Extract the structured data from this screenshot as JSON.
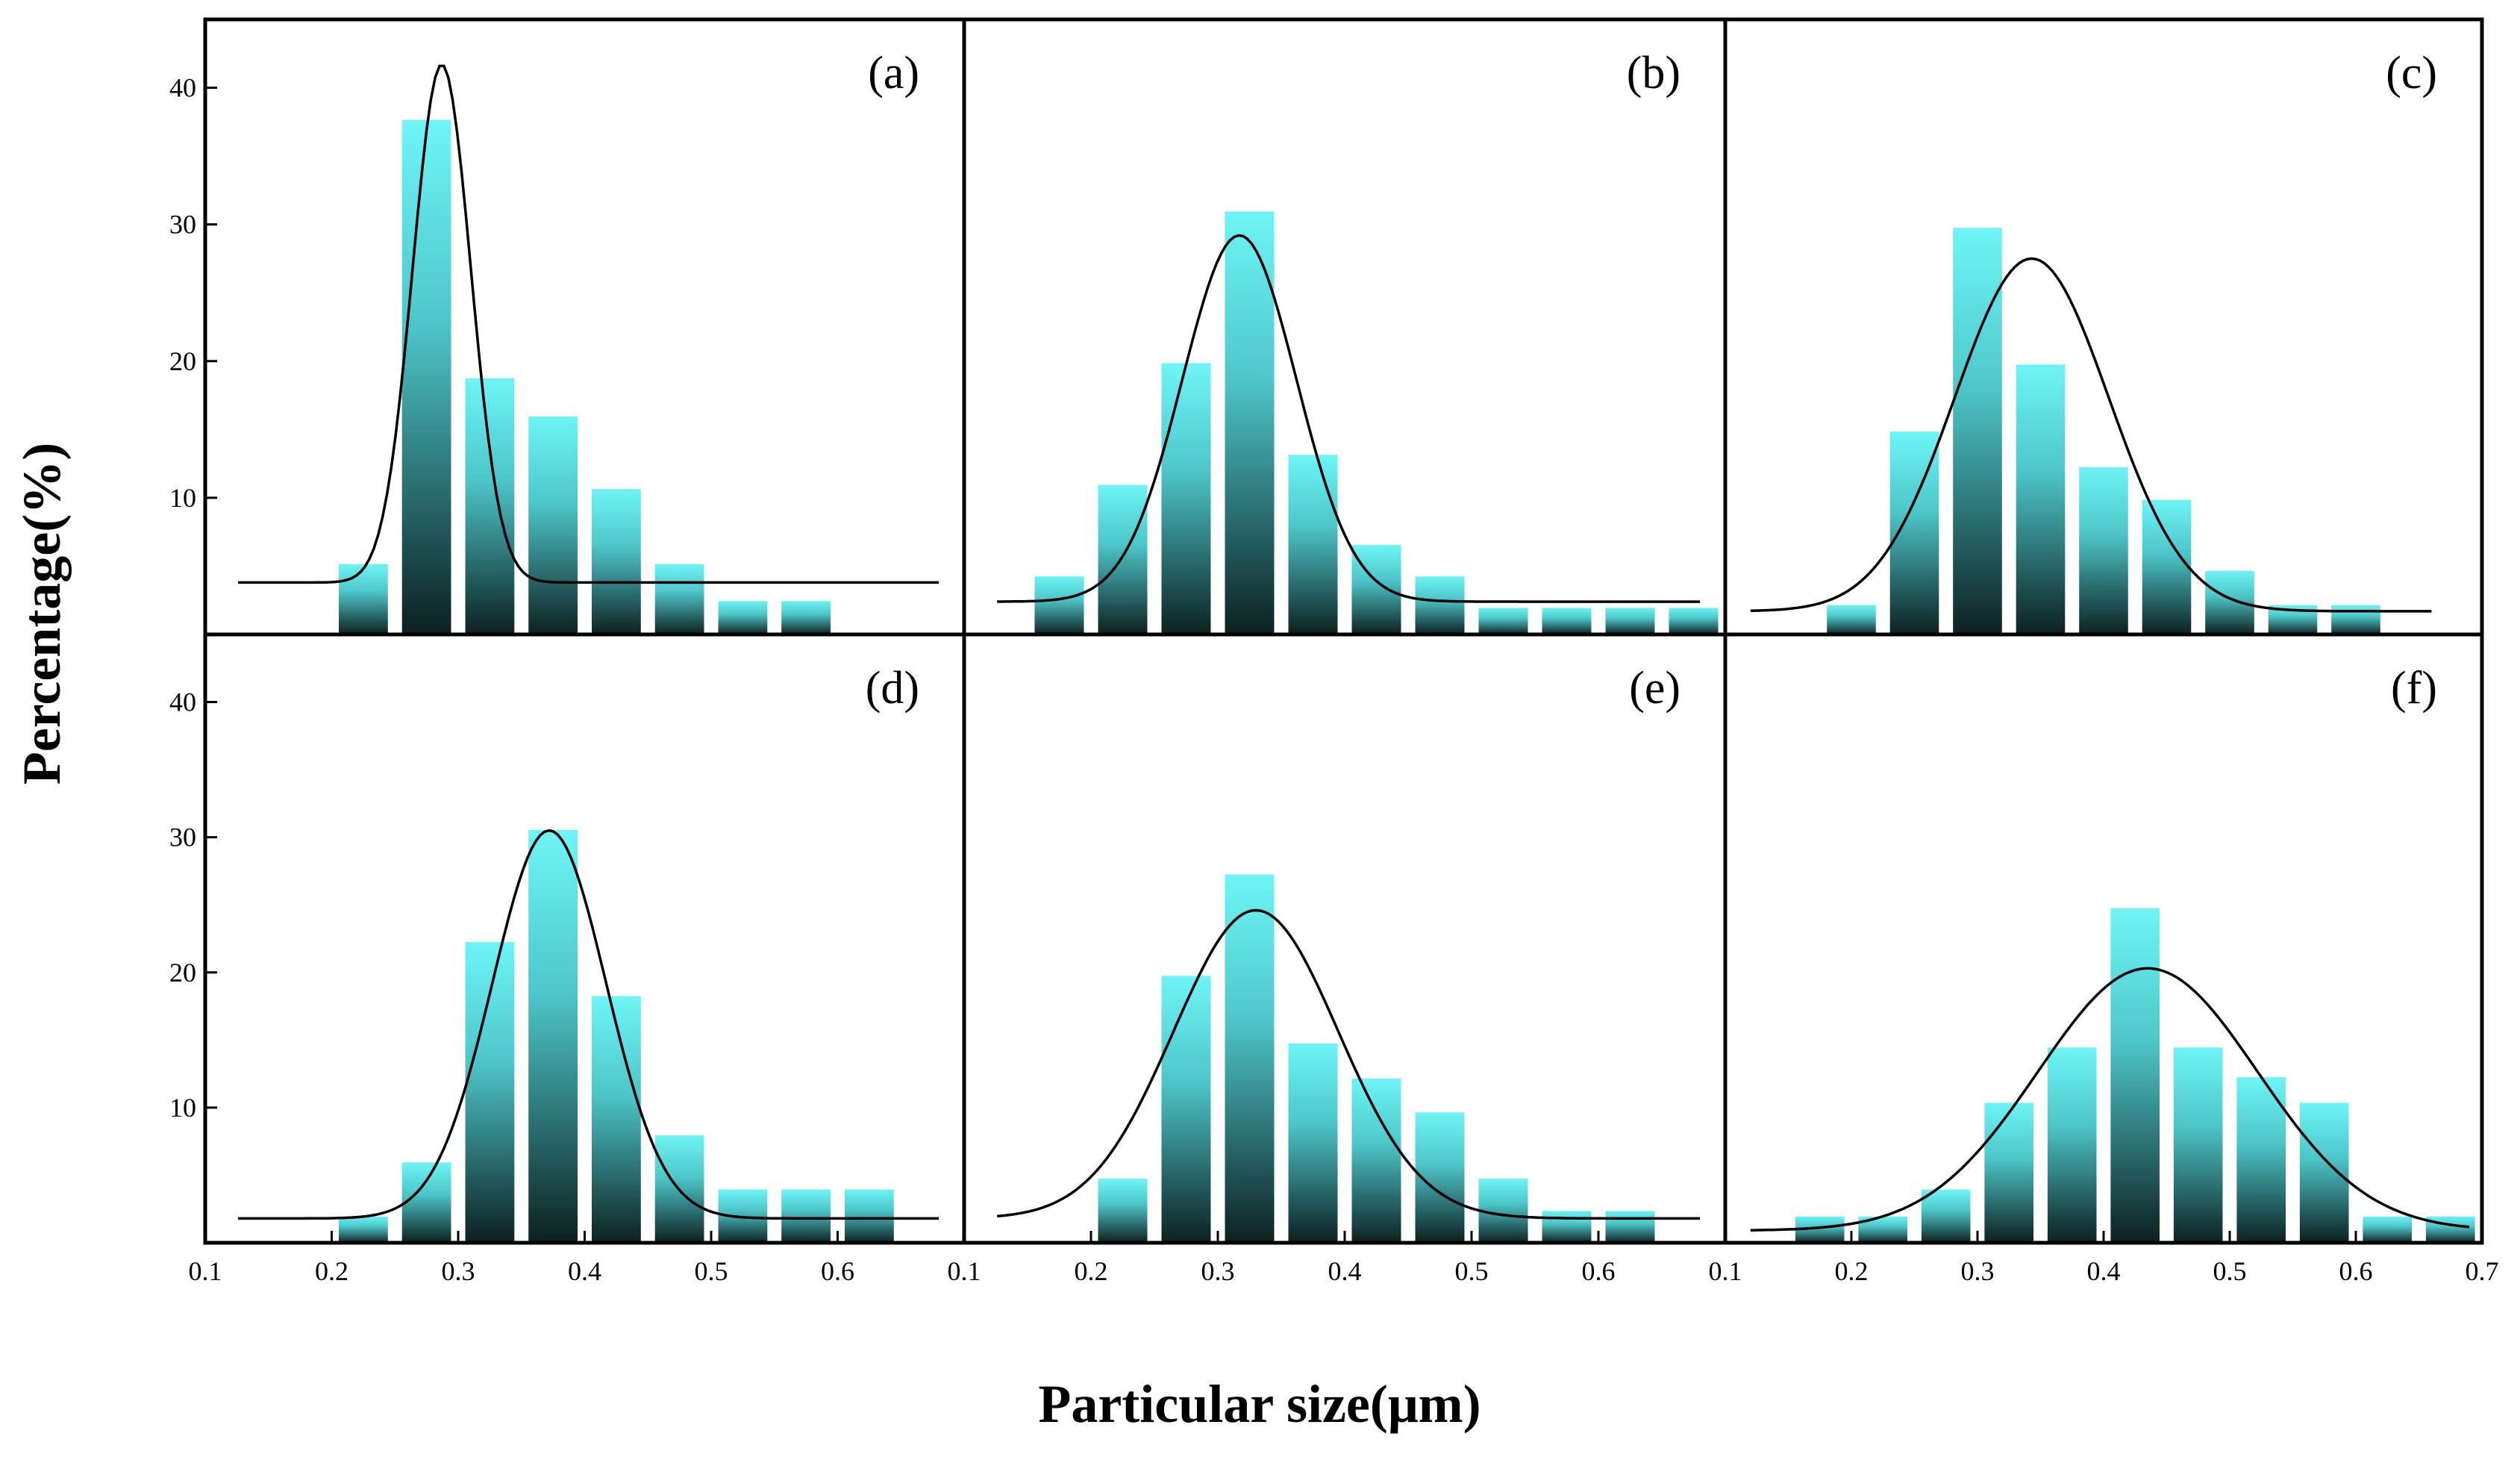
{
  "chart_data": {
    "type": "bar",
    "ylabel": "Percentage(%)",
    "xlabel": "Particular size(μm)",
    "bar_color_top": "#6ff5f7",
    "bar_color_bottom": "#0c2020",
    "fit_color": "#000000",
    "xlim": [
      0.1,
      0.7
    ],
    "ylim": [
      0,
      45
    ],
    "y_ticks": [
      {
        "value": 10,
        "label": "10"
      },
      {
        "value": 20,
        "label": "20"
      },
      {
        "value": 30,
        "label": "30"
      },
      {
        "value": 40,
        "label": "40"
      }
    ],
    "x_ticks_by_column": [
      [
        {
          "value": 0.1,
          "label": "0.1"
        },
        {
          "value": 0.2,
          "label": "0.2"
        },
        {
          "value": 0.3,
          "label": "0.3"
        },
        {
          "value": 0.4,
          "label": "0.4"
        },
        {
          "value": 0.5,
          "label": "0.5"
        },
        {
          "value": 0.6,
          "label": "0.6"
        }
      ],
      [
        {
          "value": 0.1,
          "label": "0.1"
        },
        {
          "value": 0.2,
          "label": "0.2"
        },
        {
          "value": 0.3,
          "label": "0.3"
        },
        {
          "value": 0.4,
          "label": "0.4"
        },
        {
          "value": 0.5,
          "label": "0.5"
        },
        {
          "value": 0.6,
          "label": "0.6"
        }
      ],
      [
        {
          "value": 0.1,
          "label": "0.1"
        },
        {
          "value": 0.2,
          "label": "0.2"
        },
        {
          "value": 0.3,
          "label": "0.3"
        },
        {
          "value": 0.4,
          "label": "0.4"
        },
        {
          "value": 0.5,
          "label": "0.5"
        },
        {
          "value": 0.6,
          "label": "0.6"
        },
        {
          "value": 0.7,
          "label": "0.7"
        }
      ]
    ],
    "panels": [
      {
        "label": "(a)",
        "bar_width": 0.04,
        "bars": [
          {
            "x": 0.225,
            "y": 5.2
          },
          {
            "x": 0.275,
            "y": 37.7
          },
          {
            "x": 0.325,
            "y": 18.8
          },
          {
            "x": 0.375,
            "y": 16
          },
          {
            "x": 0.425,
            "y": 10.7
          },
          {
            "x": 0.475,
            "y": 5.2
          },
          {
            "x": 0.525,
            "y": 2.5
          },
          {
            "x": 0.575,
            "y": 2.5
          }
        ],
        "fit": {
          "baseline": 3.8,
          "amplitude": 37.9,
          "center": 0.287,
          "sigma": 0.023,
          "x_range": [
            0.126,
            0.68
          ]
        }
      },
      {
        "label": "(b)",
        "bar_width": 0.04,
        "bars": [
          {
            "x": 0.175,
            "y": 4.3
          },
          {
            "x": 0.225,
            "y": 11
          },
          {
            "x": 0.275,
            "y": 19.9
          },
          {
            "x": 0.325,
            "y": 31
          },
          {
            "x": 0.375,
            "y": 13.2
          },
          {
            "x": 0.425,
            "y": 6.6
          },
          {
            "x": 0.475,
            "y": 4.3
          },
          {
            "x": 0.525,
            "y": 2
          },
          {
            "x": 0.575,
            "y": 2
          },
          {
            "x": 0.625,
            "y": 2
          },
          {
            "x": 0.675,
            "y": 2
          }
        ],
        "fit": {
          "baseline": 2.4,
          "amplitude": 26.8,
          "center": 0.317,
          "sigma": 0.045,
          "x_range": [
            0.126,
            0.68
          ]
        }
      },
      {
        "label": "(c)",
        "bar_width": 0.04,
        "bars": [
          {
            "x": 0.2,
            "y": 2.2
          },
          {
            "x": 0.25,
            "y": 14.9
          },
          {
            "x": 0.3,
            "y": 29.8
          },
          {
            "x": 0.35,
            "y": 19.8
          },
          {
            "x": 0.4,
            "y": 12.3
          },
          {
            "x": 0.45,
            "y": 9.9
          },
          {
            "x": 0.5,
            "y": 4.7
          },
          {
            "x": 0.55,
            "y": 2.2
          },
          {
            "x": 0.6,
            "y": 2.2
          }
        ],
        "fit": {
          "baseline": 1.7,
          "amplitude": 25.8,
          "center": 0.343,
          "sigma": 0.061,
          "x_range": [
            0.12,
            0.66
          ]
        }
      },
      {
        "label": "(d)",
        "bar_width": 0.04,
        "bars": [
          {
            "x": 0.225,
            "y": 2
          },
          {
            "x": 0.275,
            "y": 6
          },
          {
            "x": 0.325,
            "y": 22.3
          },
          {
            "x": 0.375,
            "y": 30.6
          },
          {
            "x": 0.425,
            "y": 18.3
          },
          {
            "x": 0.475,
            "y": 8
          },
          {
            "x": 0.525,
            "y": 4
          },
          {
            "x": 0.575,
            "y": 4
          },
          {
            "x": 0.625,
            "y": 4
          }
        ],
        "fit": {
          "baseline": 1.8,
          "amplitude": 28.7,
          "center": 0.372,
          "sigma": 0.045,
          "x_range": [
            0.126,
            0.68
          ]
        }
      },
      {
        "label": "(e)",
        "bar_width": 0.04,
        "bars": [
          {
            "x": 0.225,
            "y": 4.8
          },
          {
            "x": 0.275,
            "y": 19.8
          },
          {
            "x": 0.325,
            "y": 27.3
          },
          {
            "x": 0.375,
            "y": 14.8
          },
          {
            "x": 0.425,
            "y": 12.2
          },
          {
            "x": 0.475,
            "y": 9.7
          },
          {
            "x": 0.525,
            "y": 4.8
          },
          {
            "x": 0.575,
            "y": 2.4
          },
          {
            "x": 0.625,
            "y": 2.4
          }
        ],
        "fit": {
          "baseline": 1.8,
          "amplitude": 22.8,
          "center": 0.33,
          "sigma": 0.065,
          "x_range": [
            0.126,
            0.68
          ]
        }
      },
      {
        "label": "(f)",
        "bar_width": 0.04,
        "bars": [
          {
            "x": 0.175,
            "y": 2
          },
          {
            "x": 0.225,
            "y": 2
          },
          {
            "x": 0.275,
            "y": 4
          },
          {
            "x": 0.325,
            "y": 10.4
          },
          {
            "x": 0.375,
            "y": 14.5
          },
          {
            "x": 0.425,
            "y": 24.8
          },
          {
            "x": 0.475,
            "y": 14.5
          },
          {
            "x": 0.525,
            "y": 12.3
          },
          {
            "x": 0.575,
            "y": 10.4
          },
          {
            "x": 0.625,
            "y": 2
          },
          {
            "x": 0.675,
            "y": 2
          }
        ],
        "fit": {
          "baseline": 0.9,
          "amplitude": 19.4,
          "center": 0.435,
          "sigma": 0.087,
          "x_range": [
            0.12,
            0.69
          ]
        }
      }
    ]
  }
}
